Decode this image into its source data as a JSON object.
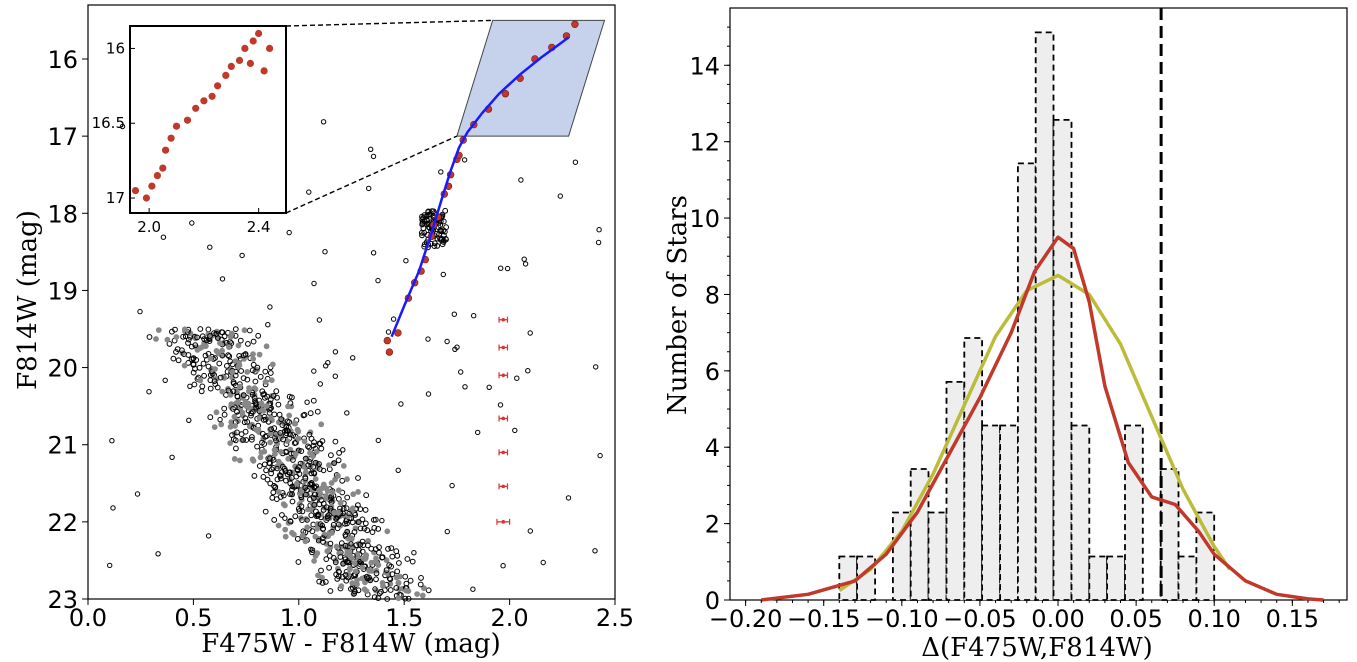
{
  "chart_data": [
    {
      "type": "scatter",
      "xlabel": "F475W - F814W (mag)",
      "ylabel": "F814W (mag)",
      "xlim": [
        0.0,
        2.5
      ],
      "ylim": [
        23,
        15.3
      ],
      "y_inverted": true,
      "xticks": [
        "0.0",
        "0.5",
        "1.0",
        "1.5",
        "2.0",
        "2.5"
      ],
      "yticks": [
        "16",
        "17",
        "18",
        "19",
        "20",
        "21",
        "22",
        "23"
      ],
      "colors": {
        "open_points": "#000000",
        "field_points": "#888888",
        "rgb_stars": "#c0392b",
        "fiducial": "#1a1aff",
        "box": "#b3c3e6",
        "errorbars": "#e03030"
      },
      "fiducial_line": {
        "name": "",
        "x": [
          1.44,
          1.5,
          1.57,
          1.63,
          1.68,
          1.72,
          1.76,
          1.8,
          1.87,
          1.95,
          2.05,
          2.15,
          2.24,
          2.28
        ],
        "y": [
          19.6,
          19.2,
          18.75,
          18.25,
          17.8,
          17.45,
          17.15,
          16.95,
          16.7,
          16.45,
          16.2,
          15.98,
          15.8,
          15.72
        ]
      },
      "red_stars_sample": {
        "x": [
          1.43,
          1.47,
          1.52,
          1.55,
          1.6,
          1.63,
          1.66,
          1.69,
          1.72,
          1.75,
          1.78,
          1.83,
          1.9,
          1.98,
          2.05,
          2.12,
          2.2,
          2.27,
          2.31,
          1.42,
          1.58,
          1.64,
          1.71,
          1.76
        ],
        "y": [
          19.8,
          19.55,
          19.1,
          18.9,
          18.6,
          18.3,
          18.05,
          17.75,
          17.5,
          17.3,
          17.05,
          16.85,
          16.65,
          16.45,
          16.25,
          16.0,
          15.85,
          15.7,
          15.55,
          19.65,
          18.75,
          18.15,
          17.65,
          17.25
        ]
      },
      "selection_box": {
        "x": [
          1.75,
          1.92,
          2.45,
          2.28
        ],
        "y": [
          17.0,
          15.5,
          15.5,
          17.0
        ]
      },
      "error_bars": {
        "x": 1.97,
        "y": [
          19.38,
          19.74,
          20.1,
          20.66,
          21.1,
          21.54,
          22.0
        ],
        "xerr": [
          0.02,
          0.02,
          0.02,
          0.02,
          0.02,
          0.02,
          0.03
        ]
      },
      "inset": {
        "xticks": [
          "2.0",
          "2.4"
        ],
        "yticks": [
          "16",
          "16.5",
          "17"
        ],
        "xlim": [
          1.93,
          2.5
        ],
        "ylim": [
          17.1,
          15.85
        ],
        "points": {
          "x": [
            1.95,
            1.99,
            2.01,
            2.03,
            2.05,
            2.06,
            2.08,
            2.1,
            2.14,
            2.17,
            2.2,
            2.23,
            2.25,
            2.28,
            2.3,
            2.33,
            2.35,
            2.38,
            2.4,
            2.44,
            2.37,
            2.42
          ],
          "y": [
            16.95,
            17.0,
            16.92,
            16.85,
            16.8,
            16.68,
            16.6,
            16.52,
            16.48,
            16.4,
            16.35,
            16.32,
            16.25,
            16.18,
            16.12,
            16.08,
            16.0,
            15.95,
            15.9,
            16.0,
            16.1,
            16.15
          ]
        }
      }
    },
    {
      "type": "bar",
      "xlabel": "Δ(F475W,F814W)",
      "ylabel": "Number of Stars",
      "xlim": [
        -0.21,
        0.185
      ],
      "ylim": [
        0,
        15.5
      ],
      "xticks": [
        "−0.20",
        "−0.15",
        "−0.10",
        "−0.05",
        "0.00",
        "0.05",
        "0.10",
        "0.15"
      ],
      "yticks": [
        "0",
        "2",
        "4",
        "6",
        "8",
        "10",
        "12",
        "14"
      ],
      "bin_edges": [
        -0.14,
        -0.1286,
        -0.1171,
        -0.1057,
        -0.0943,
        -0.0829,
        -0.0714,
        -0.06,
        -0.0486,
        -0.0371,
        -0.0257,
        -0.0143,
        -0.0029,
        0.0086,
        0.02,
        0.0314,
        0.0429,
        0.0543,
        0.0657,
        0.0771,
        0.0886,
        0.1,
        0.1114
      ],
      "counts": [
        1.14,
        1.14,
        0.0,
        2.29,
        3.43,
        2.29,
        5.71,
        6.86,
        4.57,
        4.57,
        11.43,
        14.86,
        12.57,
        4.57,
        1.14,
        1.14,
        4.57,
        0.0,
        3.43,
        1.14,
        2.29,
        0.0
      ],
      "vline_x": 0.066,
      "series": [
        {
          "name": "",
          "color": "#c0392b",
          "x": [
            -0.19,
            -0.16,
            -0.13,
            -0.11,
            -0.09,
            -0.07,
            -0.05,
            -0.03,
            -0.015,
            0.0,
            0.01,
            0.02,
            0.03,
            0.045,
            0.06,
            0.075,
            0.09,
            0.1,
            0.12,
            0.14,
            0.16,
            0.17
          ],
          "y": [
            0.0,
            0.15,
            0.5,
            1.2,
            2.3,
            3.8,
            5.3,
            7.0,
            8.6,
            9.5,
            9.2,
            7.8,
            5.6,
            3.6,
            2.7,
            2.5,
            1.8,
            1.2,
            0.5,
            0.15,
            0.03,
            0.0
          ]
        },
        {
          "name": "",
          "color": "#bcbc3c",
          "x": [
            -0.14,
            -0.12,
            -0.1,
            -0.08,
            -0.06,
            -0.04,
            -0.02,
            0.0,
            0.02,
            0.04,
            0.06,
            0.08,
            0.1,
            0.11
          ],
          "y": [
            0.25,
            0.8,
            1.8,
            3.3,
            5.1,
            6.9,
            8.1,
            8.5,
            8.0,
            6.7,
            4.8,
            2.9,
            1.4,
            0.8
          ]
        }
      ]
    }
  ]
}
